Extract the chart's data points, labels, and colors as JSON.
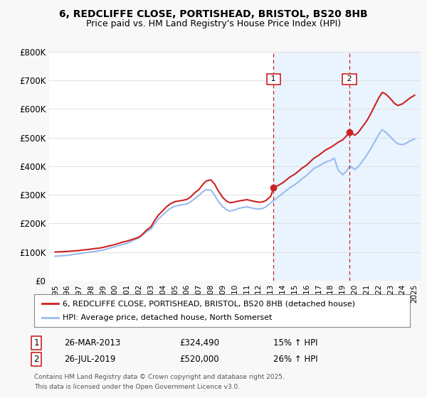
{
  "title_line1": "6, REDCLIFFE CLOSE, PORTISHEAD, BRISTOL, BS20 8HB",
  "title_line2": "Price paid vs. HM Land Registry's House Price Index (HPI)",
  "background_color": "#f8f8f8",
  "plot_bg_color": "#ffffff",
  "ylim": [
    0,
    800000
  ],
  "yticks": [
    0,
    100000,
    200000,
    300000,
    400000,
    500000,
    600000,
    700000,
    800000
  ],
  "ytick_labels": [
    "£0",
    "£100K",
    "£200K",
    "£300K",
    "£400K",
    "£500K",
    "£600K",
    "£700K",
    "£800K"
  ],
  "legend_label_red": "6, REDCLIFFE CLOSE, PORTISHEAD, BRISTOL, BS20 8HB (detached house)",
  "legend_label_blue": "HPI: Average price, detached house, North Somerset",
  "annotation1_label": "1",
  "annotation1_date": "26-MAR-2013",
  "annotation1_price": "£324,490",
  "annotation1_hpi": "15% ↑ HPI",
  "annotation2_label": "2",
  "annotation2_date": "26-JUL-2019",
  "annotation2_price": "£520,000",
  "annotation2_hpi": "26% ↑ HPI",
  "footer_line1": "Contains HM Land Registry data © Crown copyright and database right 2025.",
  "footer_line2": "This data is licensed under the Open Government Licence v3.0.",
  "red_color": "#cc2222",
  "blue_color": "#99bbee",
  "annotation_line_color": "#cc2222",
  "shaded_color": "#ddeeff",
  "marker1_x": 2013.23,
  "marker2_x": 2019.56,
  "xmin": 1995,
  "xmax": 2025,
  "red_data_x": [
    1995.0,
    1995.3,
    1995.6,
    1996.0,
    1996.3,
    1996.6,
    1997.0,
    1997.3,
    1997.6,
    1998.0,
    1998.3,
    1998.6,
    1999.0,
    1999.3,
    1999.6,
    2000.0,
    2000.3,
    2000.6,
    2001.0,
    2001.3,
    2001.6,
    2002.0,
    2002.3,
    2002.6,
    2003.0,
    2003.3,
    2003.6,
    2004.0,
    2004.3,
    2004.6,
    2005.0,
    2005.3,
    2005.6,
    2006.0,
    2006.3,
    2006.6,
    2007.0,
    2007.3,
    2007.6,
    2008.0,
    2008.3,
    2008.6,
    2009.0,
    2009.3,
    2009.6,
    2010.0,
    2010.3,
    2010.6,
    2011.0,
    2011.3,
    2011.6,
    2012.0,
    2012.3,
    2012.6,
    2013.0,
    2013.23,
    2013.6,
    2014.0,
    2014.3,
    2014.6,
    2015.0,
    2015.3,
    2015.6,
    2016.0,
    2016.3,
    2016.6,
    2017.0,
    2017.3,
    2017.6,
    2018.0,
    2018.3,
    2018.6,
    2019.0,
    2019.3,
    2019.56,
    2019.8,
    2020.0,
    2020.3,
    2020.6,
    2021.0,
    2021.3,
    2021.6,
    2022.0,
    2022.3,
    2022.6,
    2023.0,
    2023.3,
    2023.6,
    2024.0,
    2024.3,
    2024.6,
    2025.0
  ],
  "red_data_y": [
    100000,
    100500,
    101000,
    102000,
    103000,
    104000,
    105000,
    107000,
    108000,
    110000,
    112000,
    113000,
    116000,
    119000,
    122000,
    126000,
    130000,
    134000,
    138000,
    142000,
    146000,
    152000,
    162000,
    175000,
    188000,
    210000,
    228000,
    245000,
    258000,
    268000,
    276000,
    278000,
    280000,
    284000,
    292000,
    305000,
    318000,
    335000,
    348000,
    352000,
    338000,
    315000,
    290000,
    278000,
    272000,
    275000,
    278000,
    280000,
    283000,
    280000,
    277000,
    274000,
    275000,
    280000,
    295000,
    324490,
    332000,
    342000,
    352000,
    362000,
    372000,
    382000,
    393000,
    404000,
    416000,
    428000,
    438000,
    448000,
    457000,
    466000,
    474000,
    483000,
    492000,
    505000,
    520000,
    515000,
    508000,
    518000,
    535000,
    558000,
    580000,
    605000,
    638000,
    658000,
    652000,
    635000,
    620000,
    612000,
    618000,
    628000,
    638000,
    648000
  ],
  "blue_data_x": [
    1995.0,
    1995.3,
    1995.6,
    1996.0,
    1996.3,
    1996.6,
    1997.0,
    1997.3,
    1997.6,
    1998.0,
    1998.3,
    1998.6,
    1999.0,
    1999.3,
    1999.6,
    2000.0,
    2000.3,
    2000.6,
    2001.0,
    2001.3,
    2001.6,
    2002.0,
    2002.3,
    2002.6,
    2003.0,
    2003.3,
    2003.6,
    2004.0,
    2004.3,
    2004.6,
    2005.0,
    2005.3,
    2005.6,
    2006.0,
    2006.3,
    2006.6,
    2007.0,
    2007.3,
    2007.6,
    2008.0,
    2008.3,
    2008.6,
    2009.0,
    2009.3,
    2009.6,
    2010.0,
    2010.3,
    2010.6,
    2011.0,
    2011.3,
    2011.6,
    2012.0,
    2012.3,
    2012.6,
    2013.0,
    2013.5,
    2014.0,
    2014.3,
    2014.6,
    2015.0,
    2015.3,
    2015.6,
    2016.0,
    2016.3,
    2016.6,
    2017.0,
    2017.3,
    2017.6,
    2018.0,
    2018.3,
    2018.6,
    2019.0,
    2019.3,
    2019.6,
    2019.8,
    2020.0,
    2020.3,
    2020.6,
    2021.0,
    2021.3,
    2021.6,
    2022.0,
    2022.3,
    2022.6,
    2023.0,
    2023.3,
    2023.6,
    2024.0,
    2024.3,
    2024.6,
    2025.0
  ],
  "blue_data_y": [
    85000,
    86000,
    87000,
    88000,
    90000,
    92000,
    94000,
    96000,
    98000,
    100000,
    102000,
    104000,
    107000,
    110000,
    114000,
    118000,
    122000,
    126000,
    130000,
    136000,
    142000,
    150000,
    160000,
    170000,
    180000,
    198000,
    215000,
    230000,
    242000,
    252000,
    260000,
    263000,
    265000,
    268000,
    275000,
    285000,
    298000,
    310000,
    318000,
    316000,
    300000,
    278000,
    258000,
    248000,
    243000,
    247000,
    252000,
    255000,
    258000,
    255000,
    252000,
    250000,
    252000,
    258000,
    272000,
    288000,
    305000,
    315000,
    325000,
    335000,
    345000,
    356000,
    368000,
    380000,
    392000,
    400000,
    408000,
    415000,
    420000,
    428000,
    388000,
    370000,
    382000,
    400000,
    395000,
    388000,
    398000,
    415000,
    438000,
    458000,
    480000,
    510000,
    528000,
    518000,
    502000,
    488000,
    478000,
    475000,
    480000,
    488000,
    495000
  ]
}
